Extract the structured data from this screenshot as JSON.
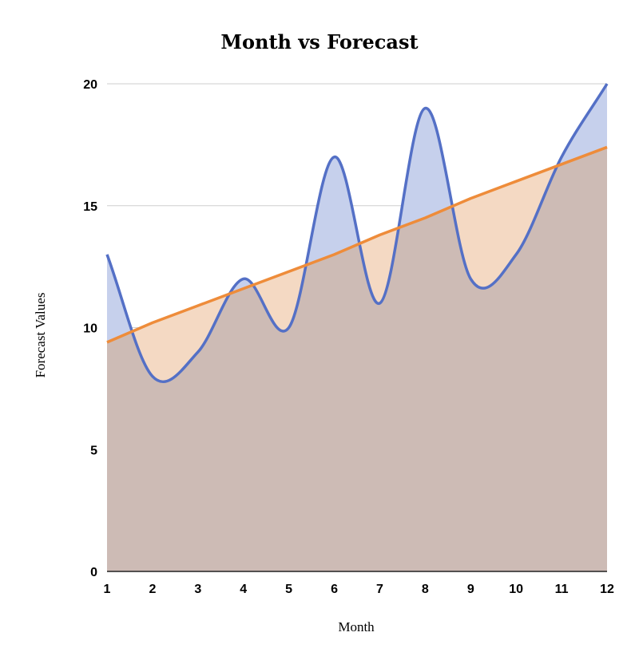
{
  "chart_data": {
    "type": "area",
    "title": "Month vs Forecast",
    "xlabel": "Month",
    "ylabel": "Forecast Values",
    "x": [
      1,
      2,
      3,
      4,
      5,
      6,
      7,
      8,
      9,
      10,
      11,
      12
    ],
    "xlim": [
      1,
      12
    ],
    "ylim": [
      0,
      20
    ],
    "yticks": [
      0,
      5,
      10,
      15,
      20
    ],
    "grid": true,
    "series": [
      {
        "values": [
          13,
          8,
          9,
          12,
          10,
          17,
          11,
          19,
          12,
          13,
          17,
          20
        ],
        "color": "#5470c6",
        "fill": "#c6d0ec",
        "smooth": true
      },
      {
        "values": [
          9.4,
          10.2,
          10.9,
          11.6,
          12.3,
          13.0,
          13.8,
          14.5,
          15.3,
          16.0,
          16.7,
          17.4
        ],
        "color": "#ee8c3a",
        "fill": "#f4d9c3",
        "smooth": false
      }
    ],
    "overlap_fill": "#cdbbb5"
  }
}
